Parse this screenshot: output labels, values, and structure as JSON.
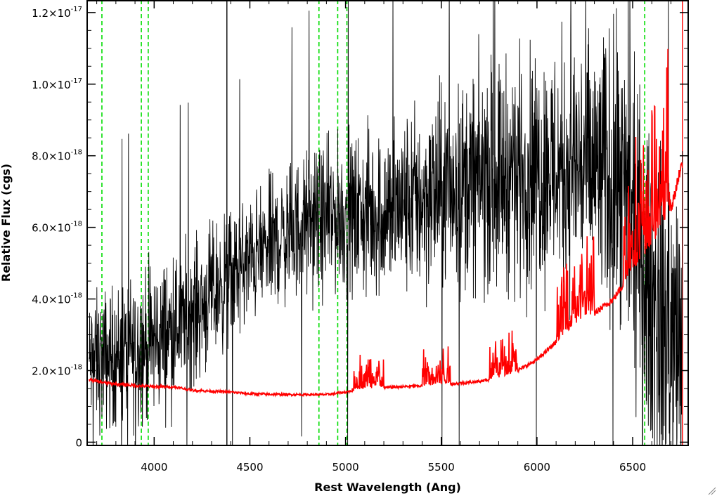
{
  "chart_data": {
    "type": "line",
    "xlabel": "Rest Wavelength (Ang)",
    "ylabel": "Relative Flux (cgs)",
    "xlim": [
      3650,
      6790
    ],
    "ylim": [
      -9e-20,
      1.235e-17
    ],
    "xticks": [
      {
        "value": 4000,
        "label": "4000"
      },
      {
        "value": 4500,
        "label": "4500"
      },
      {
        "value": 5000,
        "label": "5000"
      },
      {
        "value": 5500,
        "label": "5500"
      },
      {
        "value": 6000,
        "label": "6000"
      },
      {
        "value": 6500,
        "label": "6500"
      }
    ],
    "yticks": [
      {
        "value": 0,
        "mantissa": "0",
        "exponent": ""
      },
      {
        "value": 2e-18,
        "mantissa": "2.0×10",
        "exponent": "-18"
      },
      {
        "value": 4e-18,
        "mantissa": "4.0×10",
        "exponent": "-18"
      },
      {
        "value": 6e-18,
        "mantissa": "6.0×10",
        "exponent": "-18"
      },
      {
        "value": 8e-18,
        "mantissa": "8.0×10",
        "exponent": "-18"
      },
      {
        "value": 1e-17,
        "mantissa": "1.0×10",
        "exponent": "-17"
      },
      {
        "value": 1.2e-17,
        "mantissa": "1.2×10",
        "exponent": "-17"
      }
    ],
    "series": [
      {
        "color": "#000000",
        "style": "noisy spectrum",
        "trend_x": [
          3660,
          3800,
          4000,
          4200,
          4400,
          4600,
          4800,
          5000,
          5200,
          5400,
          5600,
          5800,
          6000,
          6200,
          6400,
          6500,
          6600,
          6700,
          6760
        ],
        "trend_y": [
          2.2e-18,
          2.4e-18,
          2.8e-18,
          3.6e-18,
          4.6e-18,
          5.5e-18,
          6.1e-18,
          6.3e-18,
          6.4e-18,
          6.8e-18,
          7.2e-18,
          7.5e-18,
          7.6e-18,
          7.8e-18,
          7.4e-18,
          6e-18,
          4e-18,
          3e-18,
          2.5e-18
        ],
        "noise_x": [
          3660,
          4000,
          4500,
          5000,
          5500,
          6000,
          6500,
          6760
        ],
        "noise_y": [
          1.4e-18,
          1.6e-18,
          1.3e-18,
          1.6e-18,
          2.1e-18,
          2.5e-18,
          3.2e-18,
          3.6e-18
        ]
      },
      {
        "color": "#ff0000",
        "style": "error spectrum",
        "x": [
          3660,
          3750,
          3900,
          4000,
          4100,
          4200,
          4400,
          4500,
          4700,
          4900,
          5000,
          5100,
          5300,
          5500,
          5700,
          5800,
          5900,
          6000,
          6100,
          6200,
          6300,
          6400,
          6500,
          6600,
          6700,
          6760
        ],
        "y": [
          1.75e-18,
          1.65e-18,
          1.58e-18,
          1.55e-18,
          1.55e-18,
          1.45e-18,
          1.4e-18,
          1.35e-18,
          1.33e-18,
          1.33e-18,
          1.4e-18,
          1.5e-18,
          1.55e-18,
          1.6e-18,
          1.7e-18,
          1.8e-18,
          2e-18,
          2.3e-18,
          2.8e-18,
          3.3e-18,
          3.6e-18,
          4e-18,
          4.8e-18,
          5.5e-18,
          6.5e-18,
          7.8e-18
        ]
      }
    ],
    "vertical_lines": [
      {
        "x": 3727,
        "color": "#00dd00",
        "dash": true
      },
      {
        "x": 3933,
        "color": "#00dd00",
        "dash": true
      },
      {
        "x": 3969,
        "color": "#00dd00",
        "dash": true
      },
      {
        "x": 4861,
        "color": "#00dd00",
        "dash": true
      },
      {
        "x": 4959,
        "color": "#00dd00",
        "dash": true
      },
      {
        "x": 5007,
        "color": "#00dd00",
        "dash": true
      },
      {
        "x": 6563,
        "color": "#00dd00",
        "dash": true
      },
      {
        "x": 4380,
        "color": "#000000",
        "dash": false
      },
      {
        "x": 6760,
        "color": "#ff0000",
        "dash": false
      }
    ],
    "grid": false,
    "legend": "none"
  }
}
